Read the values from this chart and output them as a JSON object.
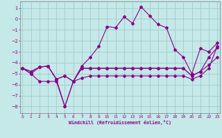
{
  "background_color": "#c5e8e8",
  "grid_color": "#a0cccc",
  "line_color": "#880088",
  "xlabel": "Windchill (Refroidissement éolien,°C)",
  "xlim_min": -0.3,
  "xlim_max": 23.3,
  "ylim_min": -8.6,
  "ylim_max": 1.6,
  "yticks": [
    1,
    0,
    -1,
    -2,
    -3,
    -4,
    -5,
    -6,
    -7,
    -8
  ],
  "xticks": [
    0,
    1,
    2,
    3,
    4,
    5,
    6,
    7,
    8,
    9,
    10,
    11,
    12,
    13,
    14,
    15,
    16,
    17,
    18,
    19,
    20,
    21,
    22,
    23
  ],
  "line_up": [
    -4.5,
    -5.0,
    -4.4,
    -4.3,
    -5.5,
    -8.0,
    -5.7,
    -4.3,
    -3.5,
    -2.5,
    -0.7,
    -0.8,
    0.2,
    -0.4,
    1.1,
    0.3,
    -0.5,
    -0.8,
    -2.8,
    -3.5,
    -5.0,
    -2.7,
    -3.0,
    -2.2
  ],
  "line_flat_hi": [
    -4.5,
    -4.8,
    -4.4,
    -4.3,
    -5.5,
    -5.2,
    -5.7,
    -4.5,
    -4.5,
    -4.5,
    -4.5,
    -4.5,
    -4.5,
    -4.5,
    -4.5,
    -4.5,
    -4.5,
    -4.5,
    -4.5,
    -4.5,
    -5.2,
    -4.8,
    -3.5,
    -2.6
  ],
  "line_flat_mid": [
    -4.5,
    -4.8,
    -4.4,
    -4.3,
    -5.5,
    -5.2,
    -5.7,
    -4.5,
    -4.5,
    -4.5,
    -4.5,
    -4.5,
    -4.5,
    -4.5,
    -4.5,
    -4.5,
    -4.5,
    -4.5,
    -4.5,
    -4.5,
    -5.2,
    -4.8,
    -4.2,
    -3.5
  ],
  "line_dip": [
    -4.5,
    -5.0,
    -5.7,
    -5.7,
    -5.7,
    -8.0,
    -5.7,
    -5.4,
    -5.2,
    -5.2,
    -5.2,
    -5.2,
    -5.2,
    -5.2,
    -5.2,
    -5.2,
    -5.2,
    -5.2,
    -5.2,
    -5.2,
    -5.5,
    -5.2,
    -4.5,
    -2.5
  ]
}
